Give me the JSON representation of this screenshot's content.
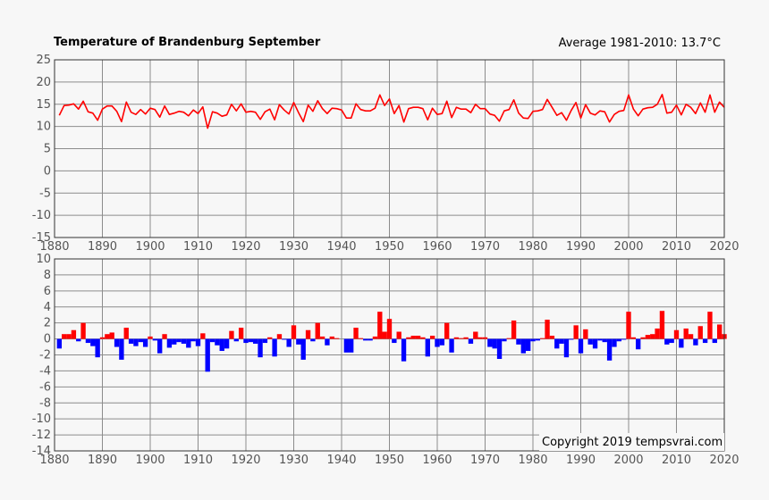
{
  "chart_data": [
    {
      "type": "line",
      "title": "Temperature of Brandenburg September",
      "subtitle": "Average 1981-2010: 13.7°C",
      "xlabel": "",
      "ylabel": "",
      "xlim": [
        1880,
        2020
      ],
      "ylim": [
        -15,
        25
      ],
      "xticks": [
        "1880",
        "1890",
        "1900",
        "1910",
        "1920",
        "1930",
        "1940",
        "1950",
        "1960",
        "1970",
        "1980",
        "1990",
        "2000",
        "2010",
        "2020"
      ],
      "yticks": [
        "25",
        "20",
        "15",
        "10",
        "5",
        "0",
        "-5",
        "-10",
        "-15"
      ],
      "grid": true,
      "colors": {
        "line": "#ff0000"
      },
      "series": [
        {
          "start_year": 1881,
          "values": [
            12.5,
            14.7,
            14.8,
            15.1,
            13.9,
            15.7,
            13.3,
            13.0,
            11.4,
            13.9,
            14.6,
            14.6,
            13.4,
            11.1,
            15.5,
            13.2,
            12.7,
            13.8,
            12.8,
            14.1,
            13.8,
            12.1,
            14.6,
            12.7,
            13.0,
            13.4,
            13.2,
            12.4,
            13.7,
            12.9,
            14.4,
            9.6,
            13.3,
            13.0,
            12.3,
            12.6,
            15.0,
            13.5,
            15.1,
            13.2,
            13.4,
            13.2,
            11.6,
            13.3,
            13.9,
            11.5,
            14.9,
            13.7,
            12.8,
            15.4,
            13.1,
            11.1,
            14.8,
            13.4,
            15.8,
            14.0,
            12.9,
            14.1,
            14.0,
            13.7,
            11.9,
            11.9,
            15.1,
            13.8,
            13.5,
            13.5,
            14.1,
            17.1,
            14.7,
            16.2,
            12.9,
            14.7,
            11.0,
            14.0,
            14.3,
            14.3,
            14.0,
            11.5,
            14.1,
            12.7,
            12.9,
            15.7,
            12.0,
            14.3,
            13.9,
            13.9,
            13.1,
            15.0,
            14.0,
            14.0,
            12.8,
            12.5,
            11.2,
            13.5,
            13.8,
            16.0,
            13.0,
            11.9,
            11.8,
            13.4,
            13.5,
            13.8,
            16.1,
            14.3,
            12.5,
            13.1,
            11.4,
            13.6,
            15.4,
            11.9,
            14.9,
            13.0,
            12.6,
            13.5,
            13.3,
            11.0,
            12.7,
            13.4,
            13.6,
            17.1,
            13.9,
            12.4,
            13.9,
            14.2,
            14.3,
            15.0,
            17.2,
            13.0,
            13.2,
            14.8,
            12.6,
            15.0,
            14.3,
            12.9,
            15.3,
            13.2,
            17.1,
            13.2,
            15.5,
            14.3
          ]
        }
      ]
    },
    {
      "type": "bar",
      "title": "",
      "xlabel": "",
      "ylabel": "",
      "xlim": [
        1880,
        2020
      ],
      "ylim": [
        -14,
        10
      ],
      "xticks": [
        "1880",
        "1890",
        "1900",
        "1910",
        "1920",
        "1930",
        "1940",
        "1950",
        "1960",
        "1970",
        "1980",
        "1990",
        "2000",
        "2010",
        "2020"
      ],
      "yticks": [
        "10",
        "8",
        "6",
        "4",
        "2",
        "0",
        "-2",
        "-4",
        "-6",
        "-8",
        "-10",
        "-12",
        "-14"
      ],
      "grid": true,
      "colors": {
        "positive": "#ff0000",
        "negative": "#0000ff"
      },
      "annotation": "Copyright 2019 tempsvrai.com",
      "series": [
        {
          "start_year": 1881,
          "values": [
            -1.2,
            0.6,
            0.6,
            1.1,
            -0.3,
            2.0,
            -0.5,
            -0.9,
            -2.3,
            0.2,
            0.6,
            0.8,
            -1.0,
            -2.6,
            1.4,
            -0.6,
            -0.9,
            -0.4,
            -1.0,
            0.3,
            -0.2,
            -1.8,
            0.6,
            -1.1,
            -0.7,
            -0.4,
            -0.6,
            -1.1,
            -0.3,
            -0.9,
            0.7,
            -4.1,
            -0.4,
            -0.8,
            -1.5,
            -1.2,
            1.0,
            -0.3,
            1.4,
            -0.5,
            -0.4,
            -0.6,
            -2.3,
            -0.5,
            0.2,
            -2.2,
            0.6,
            -0.1,
            -1.0,
            1.7,
            -0.7,
            -2.6,
            1.1,
            -0.3,
            2.0,
            0.3,
            -0.8,
            0.3,
            0.1,
            0.0,
            -1.7,
            -1.7,
            1.4,
            0.1,
            -0.2,
            -0.2,
            0.3,
            3.4,
            0.9,
            2.5,
            -0.5,
            0.9,
            -2.8,
            0.2,
            0.4,
            0.4,
            0.2,
            -2.2,
            0.4,
            -1.0,
            -0.8,
            2.0,
            -1.7,
            0.2,
            0.1,
            0.2,
            -0.6,
            0.9,
            0.2,
            0.2,
            -1.0,
            -1.2,
            -2.5,
            -0.3,
            0.1,
            2.3,
            -0.7,
            -1.8,
            -1.5,
            -0.3,
            -0.2,
            0.1,
            2.4,
            0.4,
            -1.2,
            -0.6,
            -2.3,
            -0.1,
            1.7,
            -1.8,
            1.2,
            -0.7,
            -1.2,
            -0.2,
            -0.4,
            -2.7,
            -1.0,
            -0.3,
            -0.1,
            3.4,
            0.2,
            -1.3,
            0.2,
            0.5,
            0.6,
            1.3,
            3.5,
            -0.7,
            -0.5,
            1.1,
            -1.1,
            1.3,
            0.6,
            -0.8,
            1.6,
            -0.5,
            3.4,
            -0.5,
            1.8,
            0.6
          ]
        }
      ]
    }
  ]
}
